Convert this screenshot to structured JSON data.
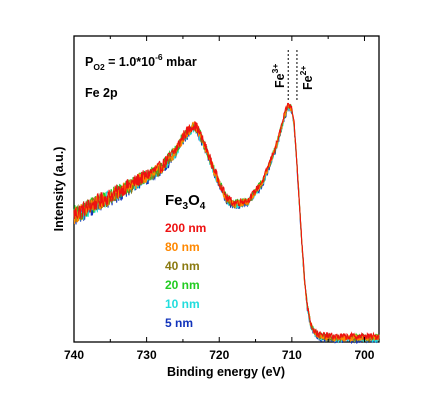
{
  "chart_data": {
    "type": "line",
    "xlabel": "Binding energy (eV)",
    "ylabel": "Intensity (a.u.)",
    "xlim": [
      740,
      698
    ],
    "x_reversed": true,
    "x_ticks": [
      740,
      730,
      720,
      710,
      700
    ],
    "ylim": [
      0,
      1.1
    ],
    "y_ticks_labeled": false,
    "grid": false,
    "legend_placement": "center-left",
    "legend_title": {
      "base": "Fe",
      "sub1": "3",
      "mid": "O",
      "sub2": "4"
    },
    "annotations": {
      "pressure": {
        "base": "P",
        "sub": "O2",
        "eq": " = 1.0*10",
        "sup": "-6",
        "unit": " mbar"
      },
      "edge": "Fe 2p",
      "fe3": {
        "base": "Fe",
        "sup": "3+",
        "x": 710.5
      },
      "fe2": {
        "base": "Fe",
        "sup": "2+",
        "x": 709.3
      }
    },
    "profile": {
      "x": [
        740,
        737,
        734,
        731,
        728,
        726,
        725,
        724,
        723.5,
        723,
        722,
        721,
        720,
        719,
        718,
        716,
        714,
        712,
        711,
        710.5,
        710,
        709.7,
        709.4,
        709,
        708.6,
        708.2,
        707.8,
        707.4,
        707,
        706.5,
        706,
        704,
        702,
        700,
        698
      ],
      "y": [
        0.46,
        0.5,
        0.54,
        0.585,
        0.63,
        0.69,
        0.74,
        0.77,
        0.78,
        0.77,
        0.71,
        0.64,
        0.575,
        0.52,
        0.5,
        0.51,
        0.58,
        0.72,
        0.82,
        0.855,
        0.84,
        0.79,
        0.68,
        0.52,
        0.35,
        0.21,
        0.12,
        0.07,
        0.045,
        0.03,
        0.025,
        0.02,
        0.02,
        0.02,
        0.02
      ]
    },
    "series": [
      {
        "name": "200 nm",
        "color": "#ee1111",
        "offset": 0.0
      },
      {
        "name": "80 nm",
        "color": "#ff8800",
        "offset": -0.005
      },
      {
        "name": "40 nm",
        "color": "#8a7a10",
        "offset": -0.006
      },
      {
        "name": "20 nm",
        "color": "#22cc22",
        "offset": -0.002
      },
      {
        "name": "10 nm",
        "color": "#22dddd",
        "offset": -0.008
      },
      {
        "name": "5 nm",
        "color": "#1133bb",
        "offset": -0.012
      }
    ]
  }
}
